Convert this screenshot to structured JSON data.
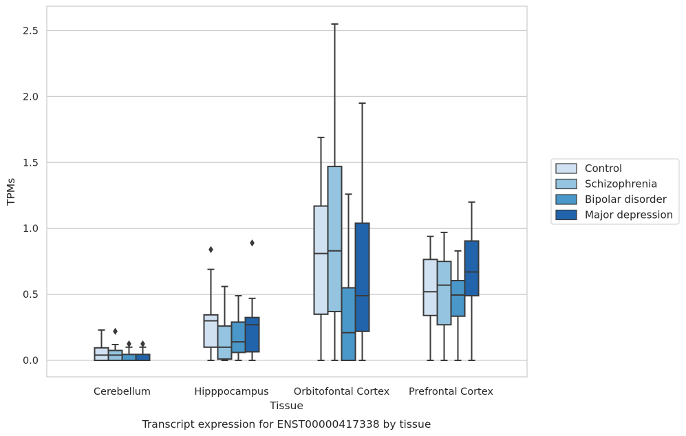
{
  "chart_data": {
    "type": "box",
    "title": "",
    "caption": "Transcript expression for ENST00000417338 by tissue",
    "xlabel": "Tissue",
    "ylabel": "TPMs",
    "ylim": [
      -0.12,
      2.68
    ],
    "yticks": [
      "0.0",
      "0.5",
      "1.0",
      "1.5",
      "2.0",
      "2.5"
    ],
    "ytick_values": [
      0,
      0.5,
      1.0,
      1.5,
      2.0,
      2.5
    ],
    "grid": "horizontal",
    "legend_position": "right",
    "categories": [
      "Cerebellum",
      "Hipppocampus",
      "Orbitofontal Cortex",
      "Prefrontal Cortex"
    ],
    "series": [
      {
        "name": "Control",
        "color": "#d0e1f2",
        "boxes": [
          {
            "whislo": 0.0,
            "q1": 0.0,
            "med": 0.04,
            "q3": 0.095,
            "whishi": 0.23,
            "fliers": []
          },
          {
            "whislo": 0.0,
            "q1": 0.1,
            "med": 0.3,
            "q3": 0.345,
            "whishi": 0.69,
            "fliers": [
              0.84
            ]
          },
          {
            "whislo": 0.0,
            "q1": 0.35,
            "med": 0.81,
            "q3": 1.17,
            "whishi": 1.69,
            "fliers": []
          },
          {
            "whislo": 0.0,
            "q1": 0.34,
            "med": 0.52,
            "q3": 0.765,
            "whishi": 0.94,
            "fliers": []
          }
        ]
      },
      {
        "name": "Schizophrenia",
        "color": "#94c4df",
        "boxes": [
          {
            "whislo": 0.0,
            "q1": 0.0,
            "med": 0.04,
            "q3": 0.075,
            "whishi": 0.12,
            "fliers": [
              0.22
            ]
          },
          {
            "whislo": 0.0,
            "q1": 0.01,
            "med": 0.1,
            "q3": 0.26,
            "whishi": 0.56,
            "fliers": []
          },
          {
            "whislo": 0.0,
            "q1": 0.37,
            "med": 0.83,
            "q3": 1.47,
            "whishi": 2.55,
            "fliers": []
          },
          {
            "whislo": 0.0,
            "q1": 0.27,
            "med": 0.57,
            "q3": 0.75,
            "whishi": 0.97,
            "fliers": []
          }
        ]
      },
      {
        "name": "Bipolar disorder",
        "color": "#4a98c9",
        "boxes": [
          {
            "whislo": 0.0,
            "q1": 0.0,
            "med": 0.0,
            "q3": 0.045,
            "whishi": 0.1,
            "fliers": [
              0.125
            ]
          },
          {
            "whislo": 0.0,
            "q1": 0.06,
            "med": 0.14,
            "q3": 0.29,
            "whishi": 0.49,
            "fliers": []
          },
          {
            "whislo": 0.0,
            "q1": 0.0,
            "med": 0.21,
            "q3": 0.55,
            "whishi": 1.26,
            "fliers": []
          },
          {
            "whislo": 0.0,
            "q1": 0.335,
            "med": 0.495,
            "q3": 0.605,
            "whishi": 0.83,
            "fliers": []
          }
        ]
      },
      {
        "name": "Major depression",
        "color": "#2164ab",
        "boxes": [
          {
            "whislo": 0.0,
            "q1": 0.0,
            "med": 0.0,
            "q3": 0.045,
            "whishi": 0.1,
            "fliers": [
              0.125
            ]
          },
          {
            "whislo": 0.0,
            "q1": 0.065,
            "med": 0.27,
            "q3": 0.325,
            "whishi": 0.47,
            "fliers": [
              0.89
            ]
          },
          {
            "whislo": 0.0,
            "q1": 0.22,
            "med": 0.49,
            "q3": 1.04,
            "whishi": 1.95,
            "fliers": []
          },
          {
            "whislo": 0.0,
            "q1": 0.49,
            "med": 0.67,
            "q3": 0.905,
            "whishi": 1.2,
            "fliers": []
          }
        ]
      }
    ]
  }
}
